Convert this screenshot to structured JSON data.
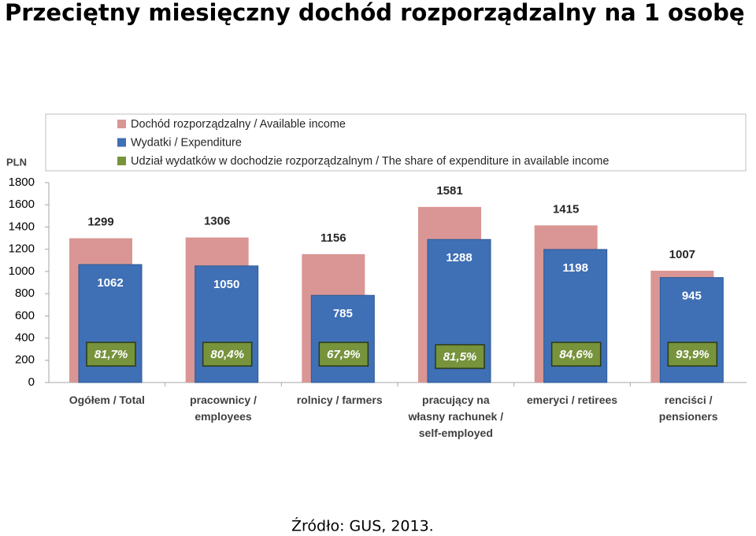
{
  "title": "Przeciętny miesięczny dochód rozporządzalny na 1 osobę",
  "source": "Źródło: GUS, 2013.",
  "chart_data": {
    "type": "bar",
    "y_label": "PLN",
    "categories": [
      "Ogółem / Total",
      "pracownicy / employees",
      "rolnicy / farmers",
      "pracujący na własny rachunek / self-employed",
      "emeryci / retirees",
      "renciści / pensioners"
    ],
    "series": [
      {
        "name": "Dochód rozporządzalny / Available income",
        "color": "#d99694",
        "values": [
          1299,
          1306,
          1156,
          1581,
          1415,
          1007
        ]
      },
      {
        "name": "Wydatki / Expenditure",
        "color": "#3f6fb5",
        "values": [
          1062,
          1050,
          785,
          1288,
          1198,
          945
        ]
      },
      {
        "name": "Udział wydatków w dochodzie rozporządzalnym / The share of expenditure in available income",
        "color": "#77933c",
        "values": [
          81.7,
          80.4,
          67.9,
          81.5,
          84.6,
          93.9
        ],
        "value_labels": [
          "81,7%",
          "80,4%",
          "67,9%",
          "81,5%",
          "84,6%",
          "93,9%"
        ]
      }
    ],
    "ylim": [
      0,
      1800
    ],
    "yticks": [
      0,
      200,
      400,
      600,
      800,
      1000,
      1200,
      1400,
      1600,
      1800
    ],
    "grid": false
  }
}
